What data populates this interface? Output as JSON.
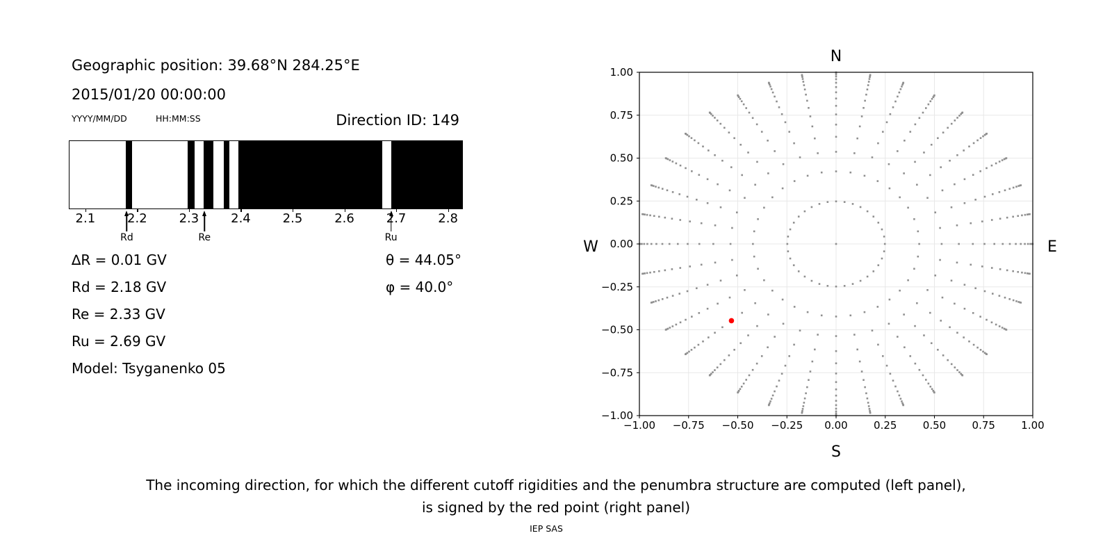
{
  "left_panel": {
    "geo_position": "Geographic position: 39.68°N 284.25°E",
    "datetime": "2015/01/20 00:00:00",
    "date_format": "YYYY/MM/DD",
    "time_format": "HH:MM:SS",
    "direction_id": "Direction ID: 149",
    "values_left": [
      "∆R = 0.01 GV",
      "Rd = 2.18 GV",
      "Re = 2.33 GV",
      "Ru = 2.69 GV",
      "Model: Tsyganenko 05"
    ],
    "values_right": [
      "θ = 44.05°",
      "φ = 40.0°"
    ]
  },
  "footer": {
    "caption_line1": "The incoming direction, for which the different cutoff rigidities and the penumbra structure are computed (left panel),",
    "caption_line2": "is signed by the red point (right panel)",
    "credit": "IEP SAS"
  },
  "chart_data": [
    {
      "type": "bar",
      "name": "penumbra-structure",
      "xlim": [
        2.068,
        2.826
      ],
      "xticks": [
        2.1,
        2.2,
        2.3,
        2.4,
        2.5,
        2.6,
        2.7,
        2.8
      ],
      "xtick_labels": [
        "2.1",
        "2.2",
        "2.3",
        "2.4",
        "2.5",
        "2.6",
        "2.7",
        "2.8"
      ],
      "bands_gv": [
        [
          2.177,
          2.189
        ],
        [
          2.296,
          2.309
        ],
        [
          2.327,
          2.346
        ],
        [
          2.366,
          2.376
        ],
        [
          2.394,
          2.672
        ],
        [
          2.689,
          2.826
        ]
      ],
      "markers": [
        {
          "label": "Rd",
          "gv": 2.18
        },
        {
          "label": "Re",
          "gv": 2.33
        },
        {
          "label": "Ru",
          "gv": 2.69
        }
      ],
      "bar_color": "#000000"
    },
    {
      "type": "scatter",
      "name": "incoming-directions",
      "compass": {
        "n": "N",
        "e": "E",
        "s": "S",
        "w": "W"
      },
      "xlim": [
        -1,
        1
      ],
      "ylim": [
        -1,
        1
      ],
      "grid": true,
      "tick_values": [
        -1,
        -0.75,
        -0.5,
        -0.25,
        0,
        0.25,
        0.5,
        0.75,
        1
      ],
      "tick_labels": [
        "−1.00",
        "−0.75",
        "−0.50",
        "−0.25",
        "0.00",
        "0.25",
        "0.50",
        "0.75",
        "1.00"
      ],
      "azimuth_start_deg": 0,
      "azimuth_step_deg": 10,
      "azimuth_count": 36,
      "ring_cos_theta": [
        0.96875,
        0.90625,
        0.84375,
        0.78125,
        0.71875,
        0.65625,
        0.59375,
        0.53125,
        0.46875,
        0.40625,
        0.34375,
        0.28125,
        0.21875,
        0.15625,
        0.09375,
        0.03125
      ],
      "center_dot": true,
      "dot_color": "#8f8f8f",
      "grid_color": "#e8e8e8",
      "red_point": {
        "x": -0.532,
        "y": -0.447,
        "theta_deg": 44.05,
        "phi_deg": 40.0,
        "color": "#ff0000"
      }
    }
  ]
}
